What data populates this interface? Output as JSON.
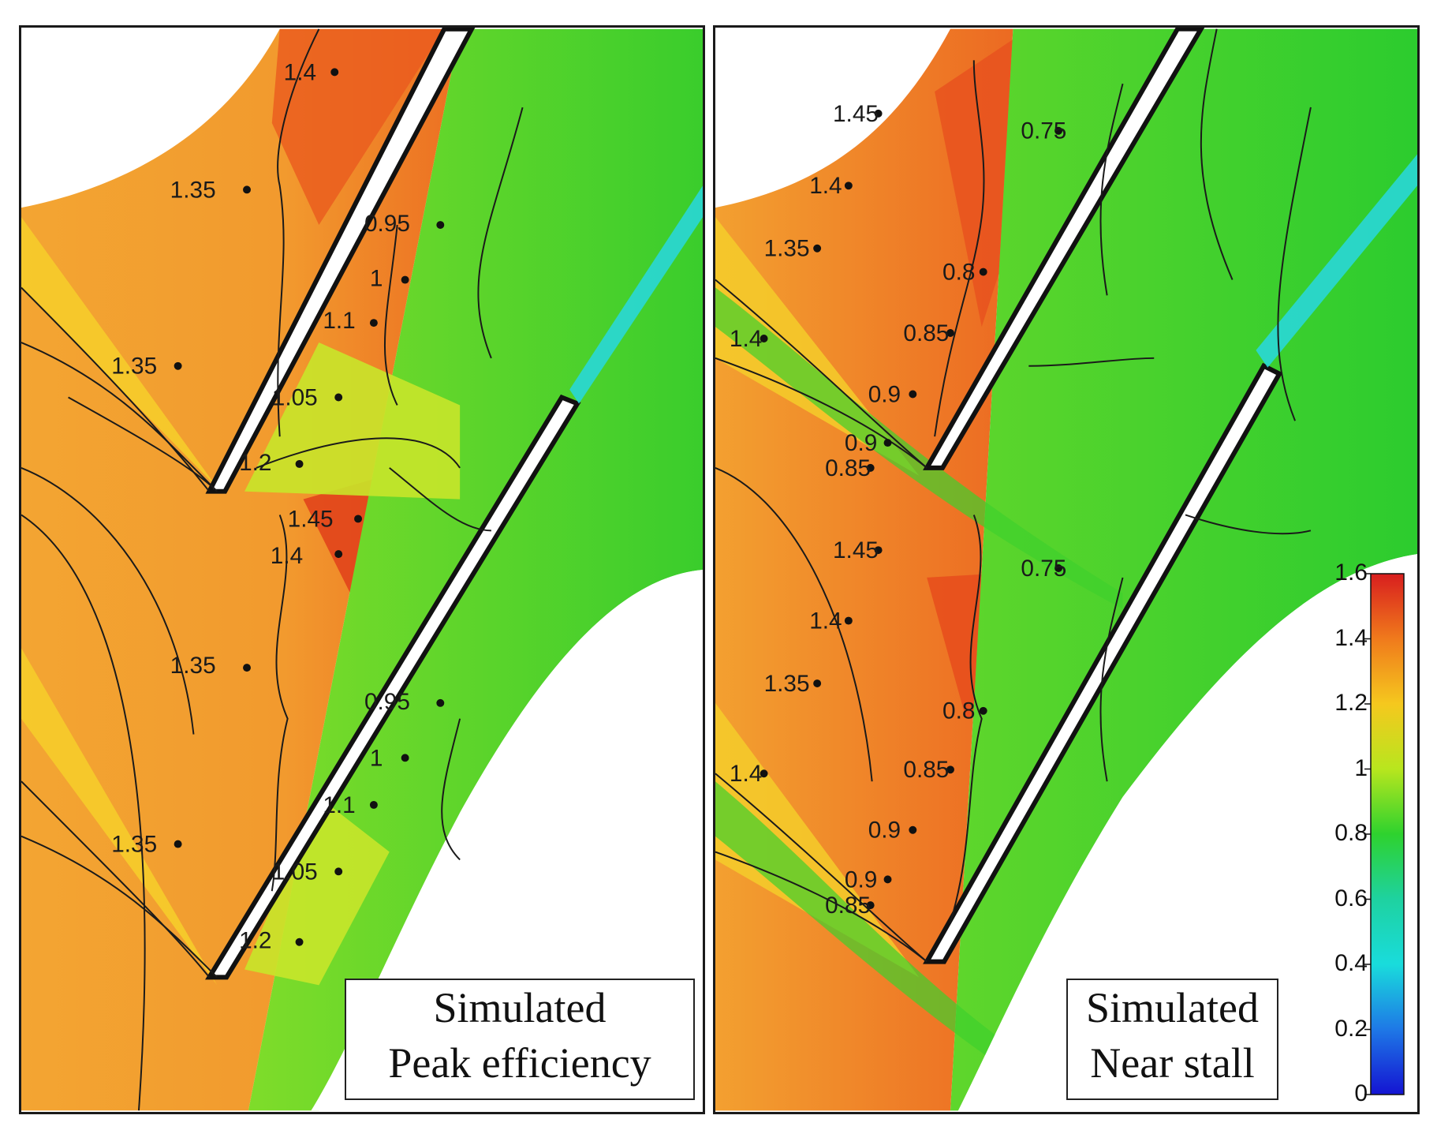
{
  "panels": [
    {
      "caption_line1": "Simulated",
      "caption_line2": "Peak efficiency",
      "contour_labels": [
        "1.4",
        "1.35",
        "0.95",
        "1",
        "1.1",
        "1.35",
        "1.05",
        "1.2",
        "1.45",
        "1.4",
        "1.35",
        "0.95",
        "1",
        "1.1",
        "1.35",
        "1.05",
        "1.2"
      ]
    },
    {
      "caption_line1": "Simulated",
      "caption_line2": "Near stall",
      "contour_labels": [
        "1.45",
        "0.75",
        "1.4",
        "1.35",
        "0.8",
        "1.4",
        "0.85",
        "0.9",
        "0.9",
        "0.85",
        "1.45",
        "0.75",
        "1.4",
        "1.35",
        "0.8",
        "1.4",
        "0.85",
        "0.9",
        "0.9",
        "0.85"
      ]
    }
  ],
  "colorbar": {
    "min": 0,
    "max": 1.6,
    "ticks": [
      "1.6",
      "1.4",
      "1.2",
      "1",
      "0.8",
      "0.6",
      "0.4",
      "0.2",
      "0"
    ],
    "colors": [
      "#d81e1e",
      "#f07a1c",
      "#f5c81e",
      "#b8e61e",
      "#2ed22e",
      "#1ed2a0",
      "#19dcdc",
      "#1e78e6",
      "#1414d2"
    ]
  }
}
